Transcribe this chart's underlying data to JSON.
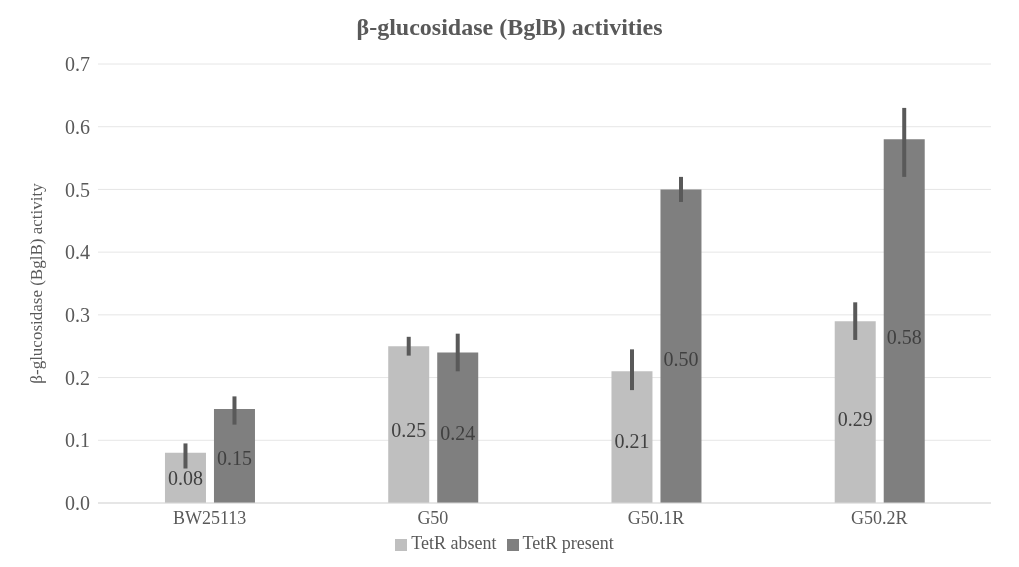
{
  "chart_data": {
    "type": "bar",
    "title": "β-glucosidase (BglB) activities",
    "ylabel": "β-glucosidase (BglB) activity",
    "categories": [
      "BW25113",
      "G50",
      "G50.1R",
      "G50.2R"
    ],
    "series": [
      {
        "name": "TetR absent",
        "color": "#bfbfbf",
        "values": [
          0.08,
          0.25,
          0.21,
          0.29
        ],
        "value_labels": [
          "0.08",
          "0.25",
          "0.21",
          "0.29"
        ],
        "errors": [
          [
            0.055,
            0.095
          ],
          [
            0.235,
            0.265
          ],
          [
            0.18,
            0.245
          ],
          [
            0.26,
            0.32
          ]
        ]
      },
      {
        "name": "TetR present",
        "color": "#7f7f7f",
        "values": [
          0.15,
          0.24,
          0.5,
          0.58
        ],
        "value_labels": [
          "0.15",
          "0.24",
          "0.50",
          "0.58"
        ],
        "errors": [
          [
            0.125,
            0.17
          ],
          [
            0.21,
            0.27
          ],
          [
            0.48,
            0.52
          ],
          [
            0.52,
            0.63
          ]
        ]
      }
    ],
    "ylim": [
      0,
      0.7
    ],
    "yticks": [
      {
        "value": 0,
        "label": "0.0"
      },
      0.1,
      0.2,
      0.3,
      0.4,
      0.5,
      0.6,
      0.7
    ],
    "grid": "y",
    "legend": "bottom"
  }
}
